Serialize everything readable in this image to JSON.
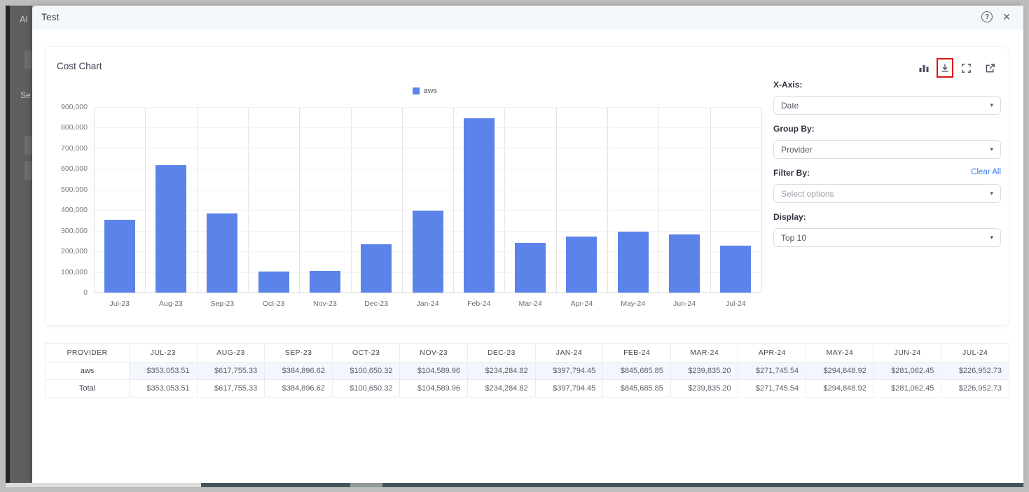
{
  "modal": {
    "title": "Test"
  },
  "header_icons": {
    "help": "?",
    "close": "✕"
  },
  "background": {
    "partial_text_top": "Al",
    "partial_text_mid": "Se"
  },
  "card": {
    "title": "Cost Chart"
  },
  "toolbar": {
    "icons": [
      "bar-chart-icon",
      "download-icon",
      "fullscreen-icon",
      "external-link-icon"
    ],
    "highlight_color": "#e01212"
  },
  "controls": {
    "x_axis_label": "X-Axis:",
    "x_axis_value": "Date",
    "group_by_label": "Group By:",
    "group_by_value": "Provider",
    "filter_by_label": "Filter By:",
    "filter_by_placeholder": "Select options",
    "clear_all_label": "Clear All",
    "display_label": "Display:",
    "display_value": "Top 10"
  },
  "chart_data": {
    "type": "bar",
    "title": "Cost Chart",
    "categories": [
      "Jul-23",
      "Aug-23",
      "Sep-23",
      "Oct-23",
      "Nov-23",
      "Dec-23",
      "Jan-24",
      "Feb-24",
      "Mar-24",
      "Apr-24",
      "May-24",
      "Jun-24",
      "Jul-24"
    ],
    "series": [
      {
        "name": "aws",
        "color": "#5b83ea",
        "values": [
          353053.51,
          617755.33,
          384896.62,
          100650.32,
          104589.96,
          234284.82,
          397794.45,
          845685.85,
          239835.2,
          271745.54,
          294848.92,
          281062.45,
          226952.73
        ]
      }
    ],
    "xlabel": "",
    "ylabel": "",
    "ylim": [
      0,
      900000
    ],
    "ytick_step": 100000,
    "grid": true,
    "legend_position": "top-center"
  },
  "table": {
    "columns": [
      "PROVIDER",
      "JUL-23",
      "AUG-23",
      "SEP-23",
      "OCT-23",
      "NOV-23",
      "DEC-23",
      "JAN-24",
      "FEB-24",
      "MAR-24",
      "APR-24",
      "MAY-24",
      "JUN-24",
      "JUL-24"
    ],
    "rows": [
      {
        "provider": "aws",
        "values": [
          "$353,053.51",
          "$617,755.33",
          "$384,896.62",
          "$100,650.32",
          "$104,589.96",
          "$234,284.82",
          "$397,794.45",
          "$845,685.85",
          "$239,835.20",
          "$271,745.54",
          "$294,848.92",
          "$281,062.45",
          "$226,952.73"
        ]
      },
      {
        "provider": "Total",
        "values": [
          "$353,053.51",
          "$617,755.33",
          "$384,896.62",
          "$100,650.32",
          "$104,589.96",
          "$234,284.82",
          "$397,794.45",
          "$845,685.85",
          "$239,835.20",
          "$271,745.54",
          "$294,848.92",
          "$281,062.45",
          "$226,952.73"
        ]
      }
    ]
  }
}
